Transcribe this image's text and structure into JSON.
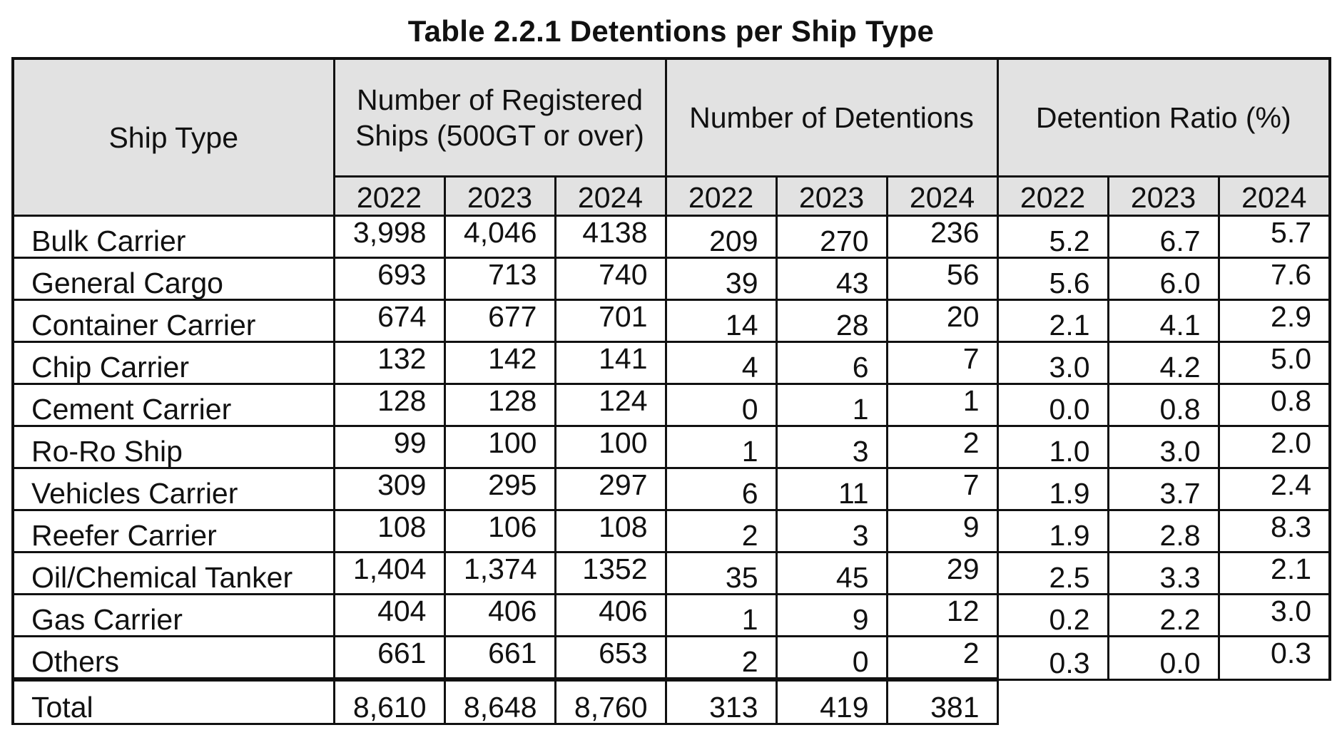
{
  "title": "Table 2.2.1 Detentions per Ship Type",
  "header": {
    "ship_type": "Ship Type",
    "registered": "Number of Registered Ships (500GT or over)",
    "detentions": "Number of Detentions",
    "ratio": "Detention Ratio (%)",
    "years": [
      "2022",
      "2023",
      "2024"
    ]
  },
  "rows": [
    {
      "name": "Bulk Carrier",
      "reg": [
        "3,998",
        "4,046",
        "4138"
      ],
      "det": [
        "209",
        "270",
        "236"
      ],
      "ratio": [
        "5.2",
        "6.7",
        "5.7"
      ]
    },
    {
      "name": "General Cargo",
      "reg": [
        "693",
        "713",
        "740"
      ],
      "det": [
        "39",
        "43",
        "56"
      ],
      "ratio": [
        "5.6",
        "6.0",
        "7.6"
      ]
    },
    {
      "name": "Container Carrier",
      "reg": [
        "674",
        "677",
        "701"
      ],
      "det": [
        "14",
        "28",
        "20"
      ],
      "ratio": [
        "2.1",
        "4.1",
        "2.9"
      ]
    },
    {
      "name": "Chip Carrier",
      "reg": [
        "132",
        "142",
        "141"
      ],
      "det": [
        "4",
        "6",
        "7"
      ],
      "ratio": [
        "3.0",
        "4.2",
        "5.0"
      ]
    },
    {
      "name": "Cement Carrier",
      "reg": [
        "128",
        "128",
        "124"
      ],
      "det": [
        "0",
        "1",
        "1"
      ],
      "ratio": [
        "0.0",
        "0.8",
        "0.8"
      ]
    },
    {
      "name": "Ro-Ro Ship",
      "reg": [
        "99",
        "100",
        "100"
      ],
      "det": [
        "1",
        "3",
        "2"
      ],
      "ratio": [
        "1.0",
        "3.0",
        "2.0"
      ]
    },
    {
      "name": "Vehicles Carrier",
      "reg": [
        "309",
        "295",
        "297"
      ],
      "det": [
        "6",
        "11",
        "7"
      ],
      "ratio": [
        "1.9",
        "3.7",
        "2.4"
      ]
    },
    {
      "name": "Reefer Carrier",
      "reg": [
        "108",
        "106",
        "108"
      ],
      "det": [
        "2",
        "3",
        "9"
      ],
      "ratio": [
        "1.9",
        "2.8",
        "8.3"
      ]
    },
    {
      "name": "Oil/Chemical Tanker",
      "reg": [
        "1,404",
        "1,374",
        "1352"
      ],
      "det": [
        "35",
        "45",
        "29"
      ],
      "ratio": [
        "2.5",
        "3.3",
        "2.1"
      ]
    },
    {
      "name": "Gas Carrier",
      "reg": [
        "404",
        "406",
        "406"
      ],
      "det": [
        "1",
        "9",
        "12"
      ],
      "ratio": [
        "0.2",
        "2.2",
        "3.0"
      ]
    },
    {
      "name": "Others",
      "reg": [
        "661",
        "661",
        "653"
      ],
      "det": [
        "2",
        "0",
        "2"
      ],
      "ratio": [
        "0.3",
        "0.0",
        "0.3"
      ]
    }
  ],
  "total": {
    "name": "Total",
    "reg": [
      "8,610",
      "8,648",
      "8,760"
    ],
    "det": [
      "313",
      "419",
      "381"
    ]
  }
}
